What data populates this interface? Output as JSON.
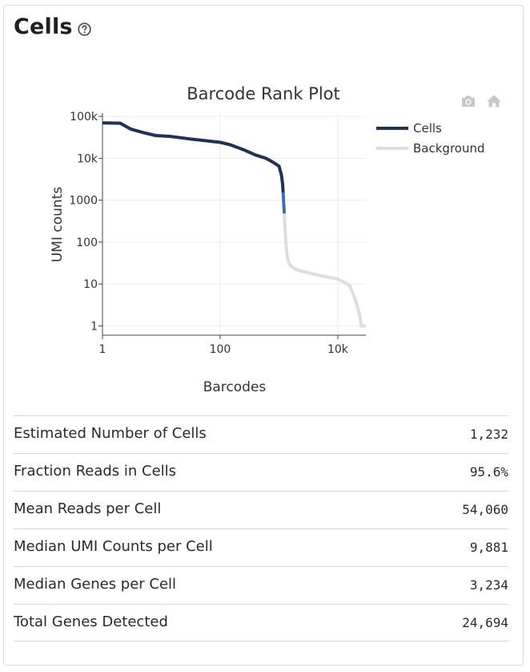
{
  "card": {
    "title": "Cells"
  },
  "icons": {
    "help": "question-circle-icon",
    "camera": "camera-icon",
    "home": "home-icon"
  },
  "chart_data": {
    "type": "line",
    "title": "Barcode Rank Plot",
    "xlabel": "Barcodes",
    "ylabel": "UMI counts",
    "xscale": "log",
    "yscale": "log",
    "xlim": [
      1,
      30000
    ],
    "ylim": [
      0.6,
      120000
    ],
    "x_ticks": [
      1,
      100,
      10000
    ],
    "x_tick_labels": [
      "1",
      "100",
      "10k"
    ],
    "y_ticks": [
      1,
      10,
      100,
      1000,
      10000,
      100000
    ],
    "y_tick_labels": [
      "1",
      "10",
      "100",
      "1000",
      "10k",
      "100k"
    ],
    "grid": true,
    "legend_position": "top-right",
    "colors": {
      "cells": "#1f3157",
      "transition": "#3b70b8",
      "background": "#dedede"
    },
    "series": [
      {
        "name": "Cells",
        "color": "#1f3157",
        "x": [
          1,
          2,
          3,
          5,
          8,
          15,
          30,
          60,
          100,
          150,
          250,
          400,
          600,
          800,
          1000,
          1100,
          1150,
          1180
        ],
        "y": [
          70000,
          69000,
          50000,
          41000,
          35000,
          33000,
          29000,
          26000,
          24000,
          21000,
          16000,
          12000,
          10000,
          8000,
          6500,
          4000,
          2500,
          1500
        ]
      },
      {
        "name": "",
        "color": "#3b70b8",
        "x": [
          1180,
          1200,
          1232
        ],
        "y": [
          1500,
          900,
          480
        ]
      },
      {
        "name": "Background",
        "color": "#dedede",
        "x": [
          1232,
          1260,
          1300,
          1350,
          1400,
          1500,
          1700,
          2000,
          2500,
          3000,
          4000,
          5000,
          6000,
          8000,
          10000,
          13000,
          16000,
          18000,
          20000,
          22000,
          24000,
          25000,
          26000,
          30000
        ],
        "y": [
          480,
          250,
          120,
          60,
          40,
          30,
          25,
          22,
          20,
          19,
          17,
          16,
          15,
          14,
          13,
          11,
          9,
          6,
          4,
          2.5,
          1.6,
          1,
          1,
          1
        ]
      }
    ]
  },
  "metrics": [
    {
      "label": "Estimated Number of Cells",
      "value": "1,232"
    },
    {
      "label": "Fraction Reads in Cells",
      "value": "95.6%"
    },
    {
      "label": "Mean Reads per Cell",
      "value": "54,060"
    },
    {
      "label": "Median UMI Counts per Cell",
      "value": "9,881"
    },
    {
      "label": "Median Genes per Cell",
      "value": "3,234"
    },
    {
      "label": "Total Genes Detected",
      "value": "24,694"
    }
  ]
}
